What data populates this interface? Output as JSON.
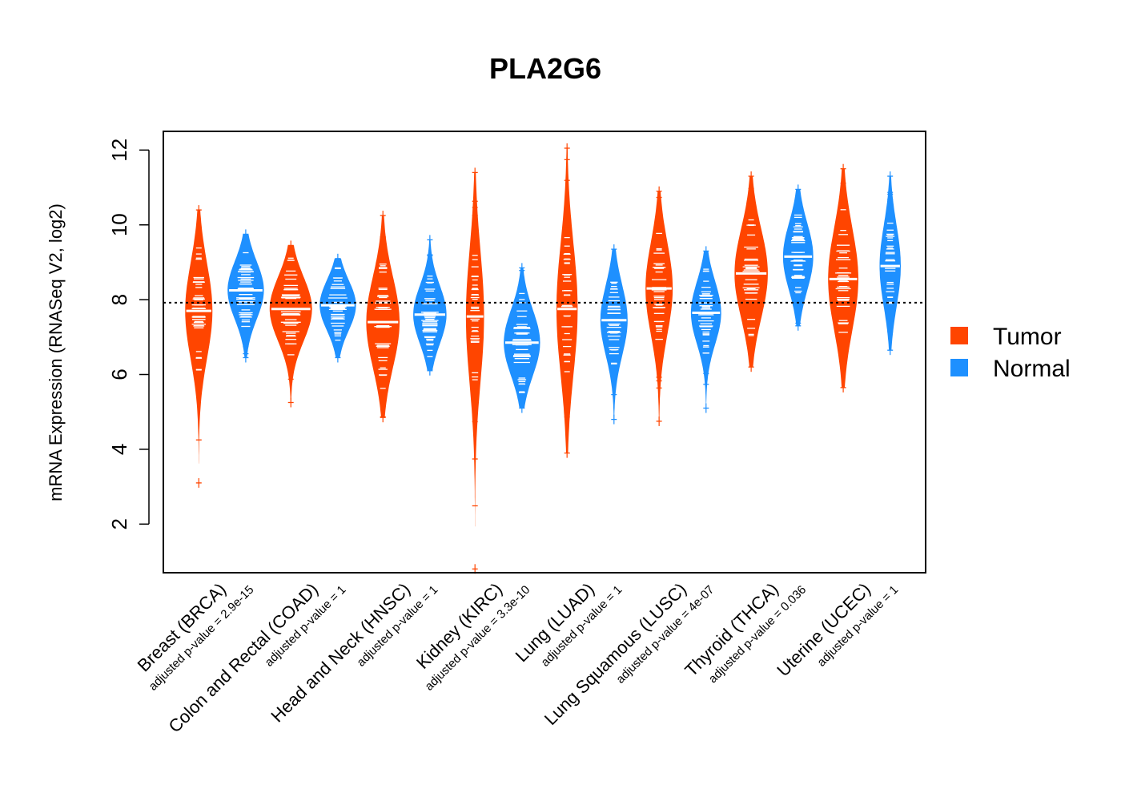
{
  "chart_data": {
    "type": "beanplot",
    "title": "PLA2G6",
    "xlabel": "",
    "ylabel": "mRNA Expression (RNASeq V2, log2)",
    "ylim": [
      0.7,
      12.5
    ],
    "yticks": [
      2,
      4,
      6,
      8,
      10,
      12
    ],
    "reference_line": 7.92,
    "grid": false,
    "legend": {
      "position": "right",
      "entries": [
        {
          "name": "Tumor",
          "color": "#FF4500"
        },
        {
          "name": "Normal",
          "color": "#1E90FF"
        }
      ]
    },
    "categories": [
      {
        "label": "Breast (BRCA)",
        "pvalue": "adjusted p-value = 2.9e-15",
        "tumor": {
          "median": 7.7,
          "min": 3.1,
          "max": 10.4,
          "width": 0.45
        },
        "normal": {
          "median": 8.25,
          "min": 6.45,
          "max": 9.75,
          "width": 0.6
        }
      },
      {
        "label": "Colon and Rectal (COAD)",
        "pvalue": "adjusted p-value = 1",
        "tumor": {
          "median": 7.75,
          "min": 5.25,
          "max": 9.45,
          "width": 0.7
        },
        "normal": {
          "median": 7.85,
          "min": 6.45,
          "max": 9.1,
          "width": 0.6
        }
      },
      {
        "label": "Head and Neck (HNSC)",
        "pvalue": "adjusted p-value = 1",
        "tumor": {
          "median": 7.4,
          "min": 4.85,
          "max": 10.25,
          "width": 0.55
        },
        "normal": {
          "median": 7.6,
          "min": 6.1,
          "max": 9.6,
          "width": 0.55
        }
      },
      {
        "label": "Kidney (KIRC)",
        "pvalue": "adjusted p-value = 3.3e-10",
        "tumor": {
          "median": 7.55,
          "min": 0.8,
          "max": 11.4,
          "width": 0.3
        },
        "normal": {
          "median": 6.85,
          "min": 5.1,
          "max": 8.85,
          "width": 0.6
        }
      },
      {
        "label": "Lung (LUAD)",
        "pvalue": "adjusted p-value = 1",
        "tumor": {
          "median": 7.75,
          "min": 3.9,
          "max": 12.05,
          "width": 0.35
        },
        "normal": {
          "median": 7.45,
          "min": 4.8,
          "max": 9.35,
          "width": 0.45
        }
      },
      {
        "label": "Lung Squamous (LUSC)",
        "pvalue": "adjusted p-value = 4e-07",
        "tumor": {
          "median": 8.3,
          "min": 4.75,
          "max": 10.9,
          "width": 0.45
        },
        "normal": {
          "median": 7.65,
          "min": 5.1,
          "max": 9.3,
          "width": 0.5
        }
      },
      {
        "label": "Thyroid (THCA)",
        "pvalue": "adjusted p-value = 0.036",
        "tumor": {
          "median": 8.7,
          "min": 6.2,
          "max": 11.3,
          "width": 0.55
        },
        "normal": {
          "median": 9.15,
          "min": 7.3,
          "max": 10.95,
          "width": 0.5
        }
      },
      {
        "label": "Uterine (UCEC)",
        "pvalue": "adjusted p-value = 1",
        "tumor": {
          "median": 8.55,
          "min": 5.65,
          "max": 11.5,
          "width": 0.5
        },
        "normal": {
          "median": 8.9,
          "min": 6.65,
          "max": 11.3,
          "width": 0.35
        }
      }
    ]
  }
}
